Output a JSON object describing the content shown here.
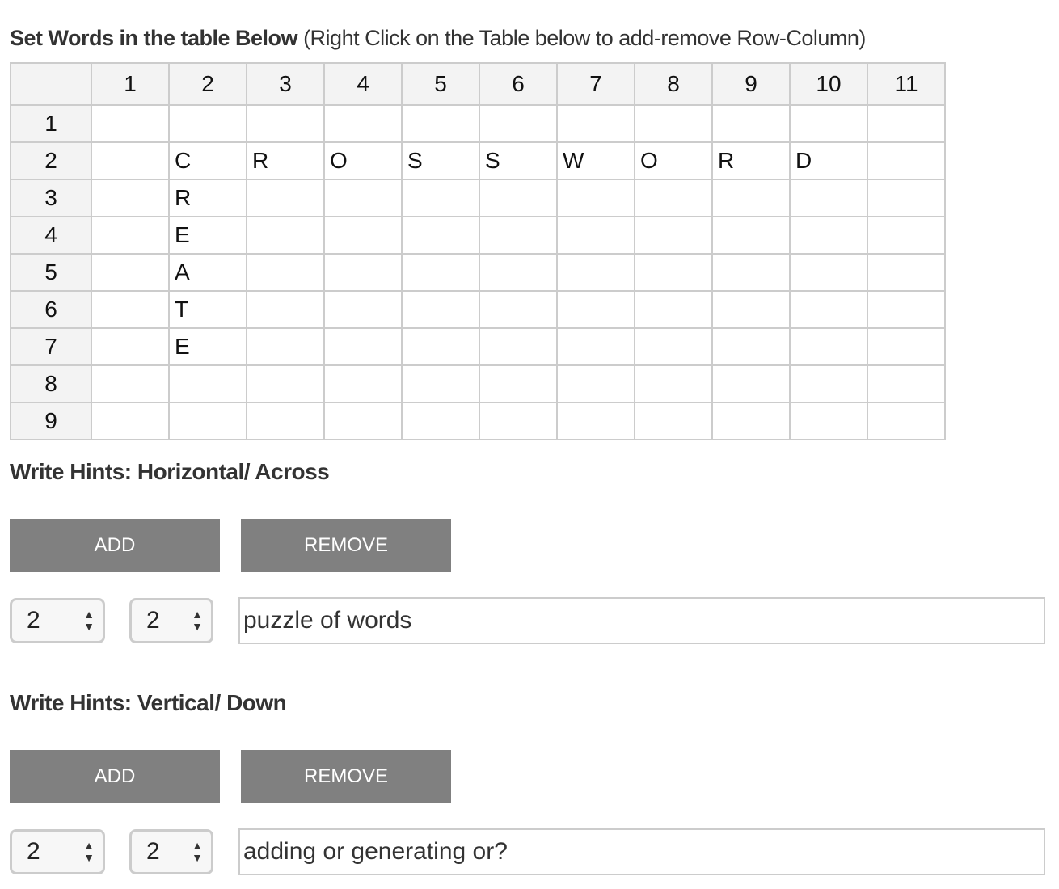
{
  "title": {
    "bold": "Set Words in the table Below",
    "note": " (Right Click on the Table below to add-remove Row-Column)"
  },
  "grid": {
    "column_headers": [
      "1",
      "2",
      "3",
      "4",
      "5",
      "6",
      "7",
      "8",
      "9",
      "10",
      "11"
    ],
    "row_headers": [
      "1",
      "2",
      "3",
      "4",
      "5",
      "6",
      "7",
      "8",
      "9"
    ],
    "cells": [
      [
        "",
        "",
        "",
        "",
        "",
        "",
        "",
        "",
        "",
        "",
        ""
      ],
      [
        "",
        "C",
        "R",
        "O",
        "S",
        "S",
        "W",
        "O",
        "R",
        "D",
        ""
      ],
      [
        "",
        "R",
        "",
        "",
        "",
        "",
        "",
        "",
        "",
        "",
        ""
      ],
      [
        "",
        "E",
        "",
        "",
        "",
        "",
        "",
        "",
        "",
        "",
        ""
      ],
      [
        "",
        "A",
        "",
        "",
        "",
        "",
        "",
        "",
        "",
        "",
        ""
      ],
      [
        "",
        "T",
        "",
        "",
        "",
        "",
        "",
        "",
        "",
        "",
        ""
      ],
      [
        "",
        "E",
        "",
        "",
        "",
        "",
        "",
        "",
        "",
        "",
        ""
      ],
      [
        "",
        "",
        "",
        "",
        "",
        "",
        "",
        "",
        "",
        "",
        ""
      ],
      [
        "",
        "",
        "",
        "",
        "",
        "",
        "",
        "",
        "",
        "",
        ""
      ]
    ]
  },
  "across": {
    "heading": "Write Hints: Horizontal/ Across",
    "add_label": "ADD",
    "remove_label": "REMOVE",
    "row_value": "2",
    "col_value": "2",
    "hint_value": "puzzle of words"
  },
  "down": {
    "heading": "Write Hints: Vertical/ Down",
    "add_label": "ADD",
    "remove_label": "REMOVE",
    "row_value": "2",
    "col_value": "2",
    "hint_value": "adding or generating or?"
  },
  "colors": {
    "button_bg": "#808080",
    "header_bg": "#f3f3f3",
    "border": "#cccccc"
  }
}
